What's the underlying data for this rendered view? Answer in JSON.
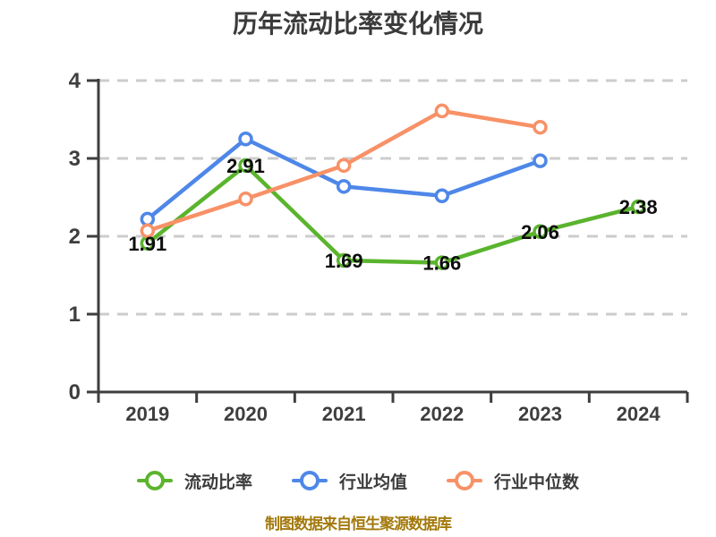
{
  "title": "历年流动比率变化情况",
  "footer_note": "制图数据来自恒生聚源数据库",
  "colors": {
    "title_text": "#3b3b3b",
    "axis": "#3e3e3e",
    "gridline": "#cccccc",
    "tick_label": "#3e3e3e",
    "data_label": "#0d0d0d",
    "legend_text": "#3c3c3c",
    "footer_text": "#a3790c",
    "background": "#ffffff"
  },
  "chart_data": {
    "type": "line",
    "title": "历年流动比率变化情况",
    "categories": [
      "2019",
      "2020",
      "2021",
      "2022",
      "2023",
      "2024"
    ],
    "series": [
      {
        "name": "流动比率",
        "color": "#5ab42d",
        "values": [
          1.91,
          2.91,
          1.69,
          1.66,
          2.06,
          2.38
        ],
        "show_labels": true
      },
      {
        "name": "行业均值",
        "color": "#4e87e8",
        "values": [
          2.22,
          3.25,
          2.64,
          2.52,
          2.97,
          null
        ],
        "show_labels": false
      },
      {
        "name": "行业中位数",
        "color": "#f89167",
        "values": [
          2.07,
          2.48,
          2.91,
          3.61,
          3.4,
          null
        ],
        "show_labels": false
      }
    ],
    "ylim": [
      0,
      4
    ],
    "yticks": [
      0,
      1,
      2,
      3,
      4
    ],
    "grid": "horizontal-dashed",
    "legend_position": "bottom",
    "marker": "hollow-circle",
    "source_note": "制图数据来自恒生聚源数据库"
  }
}
